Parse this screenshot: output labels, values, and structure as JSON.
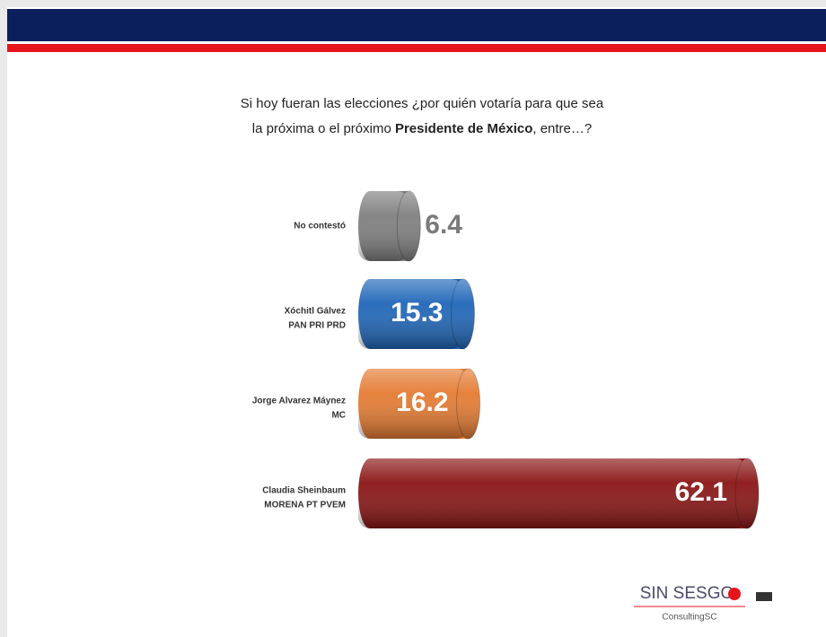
{
  "chart_data": {
    "type": "cylinder-bar",
    "title_parts": [
      "Si hoy fueran las elecciones ¿por quién votaría para que sea",
      "la próxima o el próximo ",
      "Presidente de México",
      ", entre…?"
    ],
    "categories": [
      [
        "No contestó"
      ],
      [
        "Xóchitl Gálvez",
        "PAN PRI PRD"
      ],
      [
        "Jorge Alvarez Máynez",
        "MC"
      ],
      [
        "Claudia Sheinbaum",
        "MORENA PT PVEM"
      ]
    ],
    "values": [
      6.4,
      15.3,
      16.2,
      62.1
    ],
    "colors": [
      "#7f7f7f",
      "#1f66b8",
      "#e47b32",
      "#8a1414"
    ],
    "logo": {
      "name": "SIN SESGO",
      "sub": "ConsultingSC"
    }
  }
}
